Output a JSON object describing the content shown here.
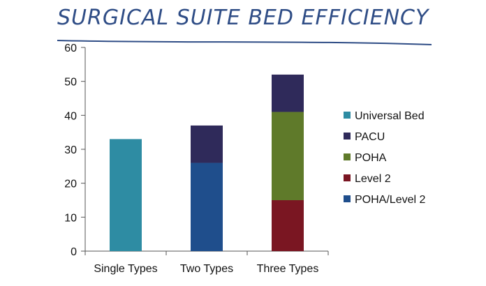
{
  "chart_data": {
    "type": "bar",
    "stacked": true,
    "title": "SURGICAL SUITE BED EFFICIENCY",
    "categories": [
      "Single Types",
      "Two Types",
      "Three Types"
    ],
    "ylim": [
      0,
      60
    ],
    "yticks": [
      0,
      10,
      20,
      30,
      40,
      50,
      60
    ],
    "grid": false,
    "legend_position": "right",
    "series": [
      {
        "name": "Universal Bed",
        "color": "#2e8ca3",
        "values": [
          33,
          0,
          0
        ]
      },
      {
        "name": "POHA/Level 2",
        "color": "#1f4e8c",
        "values": [
          0,
          26,
          0
        ]
      },
      {
        "name": "Level 2",
        "color": "#7a1622",
        "values": [
          0,
          0,
          15
        ]
      },
      {
        "name": "POHA",
        "color": "#5f7a2a",
        "values": [
          0,
          0,
          26
        ]
      },
      {
        "name": "PACU",
        "color": "#2f2a5a",
        "values": [
          0,
          11,
          11
        ]
      }
    ],
    "legend_order": [
      "Universal Bed",
      "PACU",
      "POHA",
      "Level 2",
      "POHA/Level 2"
    ]
  }
}
